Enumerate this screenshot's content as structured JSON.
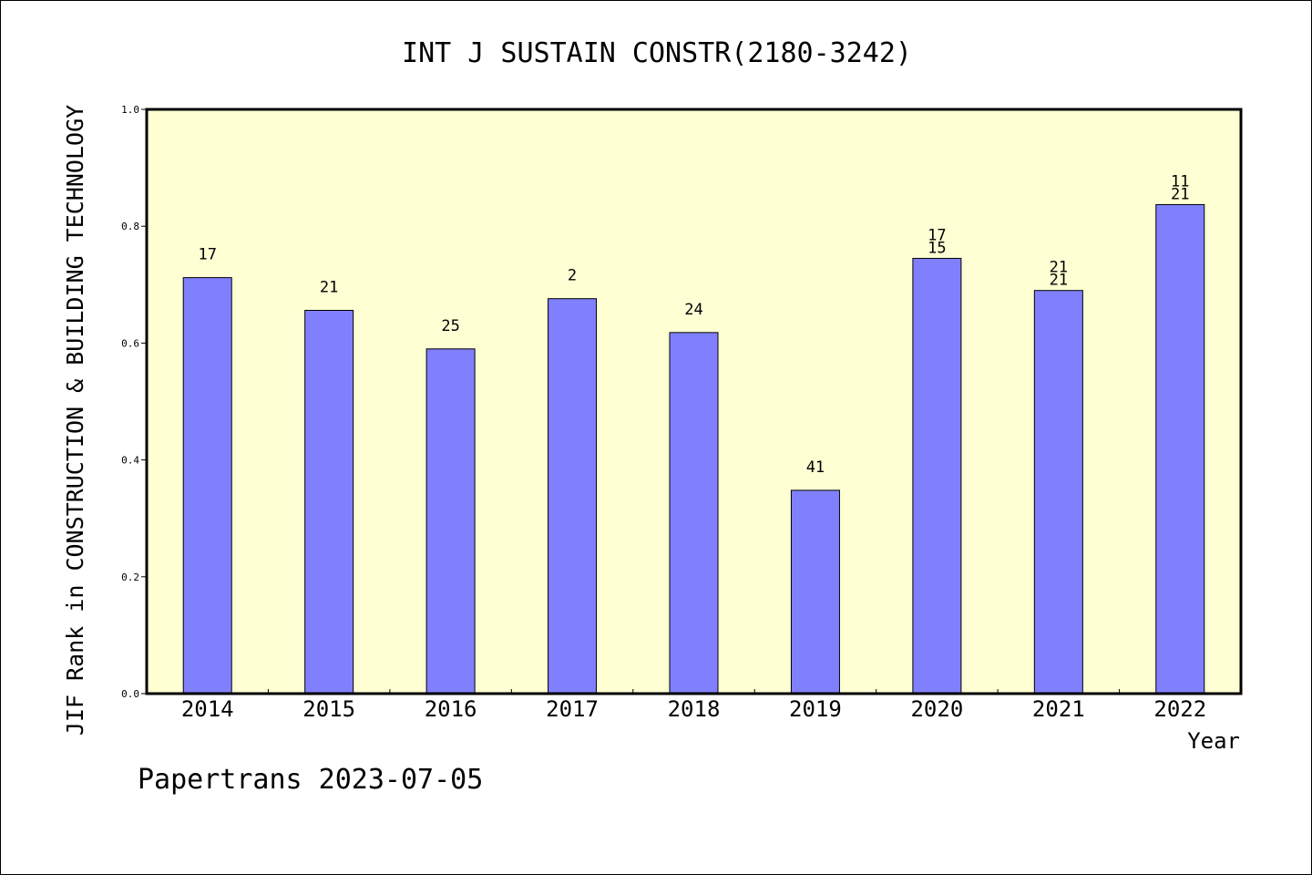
{
  "chart_data": {
    "type": "bar",
    "title": "INT J SUSTAIN CONSTR(2180-3242)",
    "ylabel": "JIF Rank in CONSTRUCTION & BUILDING TECHNOLOGY",
    "xlabel": "Year",
    "categories": [
      "2014",
      "2015",
      "2016",
      "2017",
      "2018",
      "2019",
      "2020",
      "2021",
      "2022"
    ],
    "values": [
      0.712,
      0.656,
      0.59,
      0.676,
      0.618,
      0.348,
      0.745,
      0.69,
      0.837
    ],
    "labels": [
      [
        "17"
      ],
      [
        "21"
      ],
      [
        "25"
      ],
      [
        "2"
      ],
      [
        "24"
      ],
      [
        "41"
      ],
      [
        "17",
        "15"
      ],
      [
        "21",
        "21"
      ],
      [
        "11",
        "21"
      ]
    ],
    "ylim": [
      0,
      1.0
    ],
    "yticks": [
      "0.0",
      "0.2",
      "0.4",
      "0.6",
      "0.8",
      "1.0"
    ],
    "grid": false,
    "plot_background": "#ffffd4",
    "bar_color": "#8080ff"
  },
  "footer": "Papertrans 2023-07-05"
}
